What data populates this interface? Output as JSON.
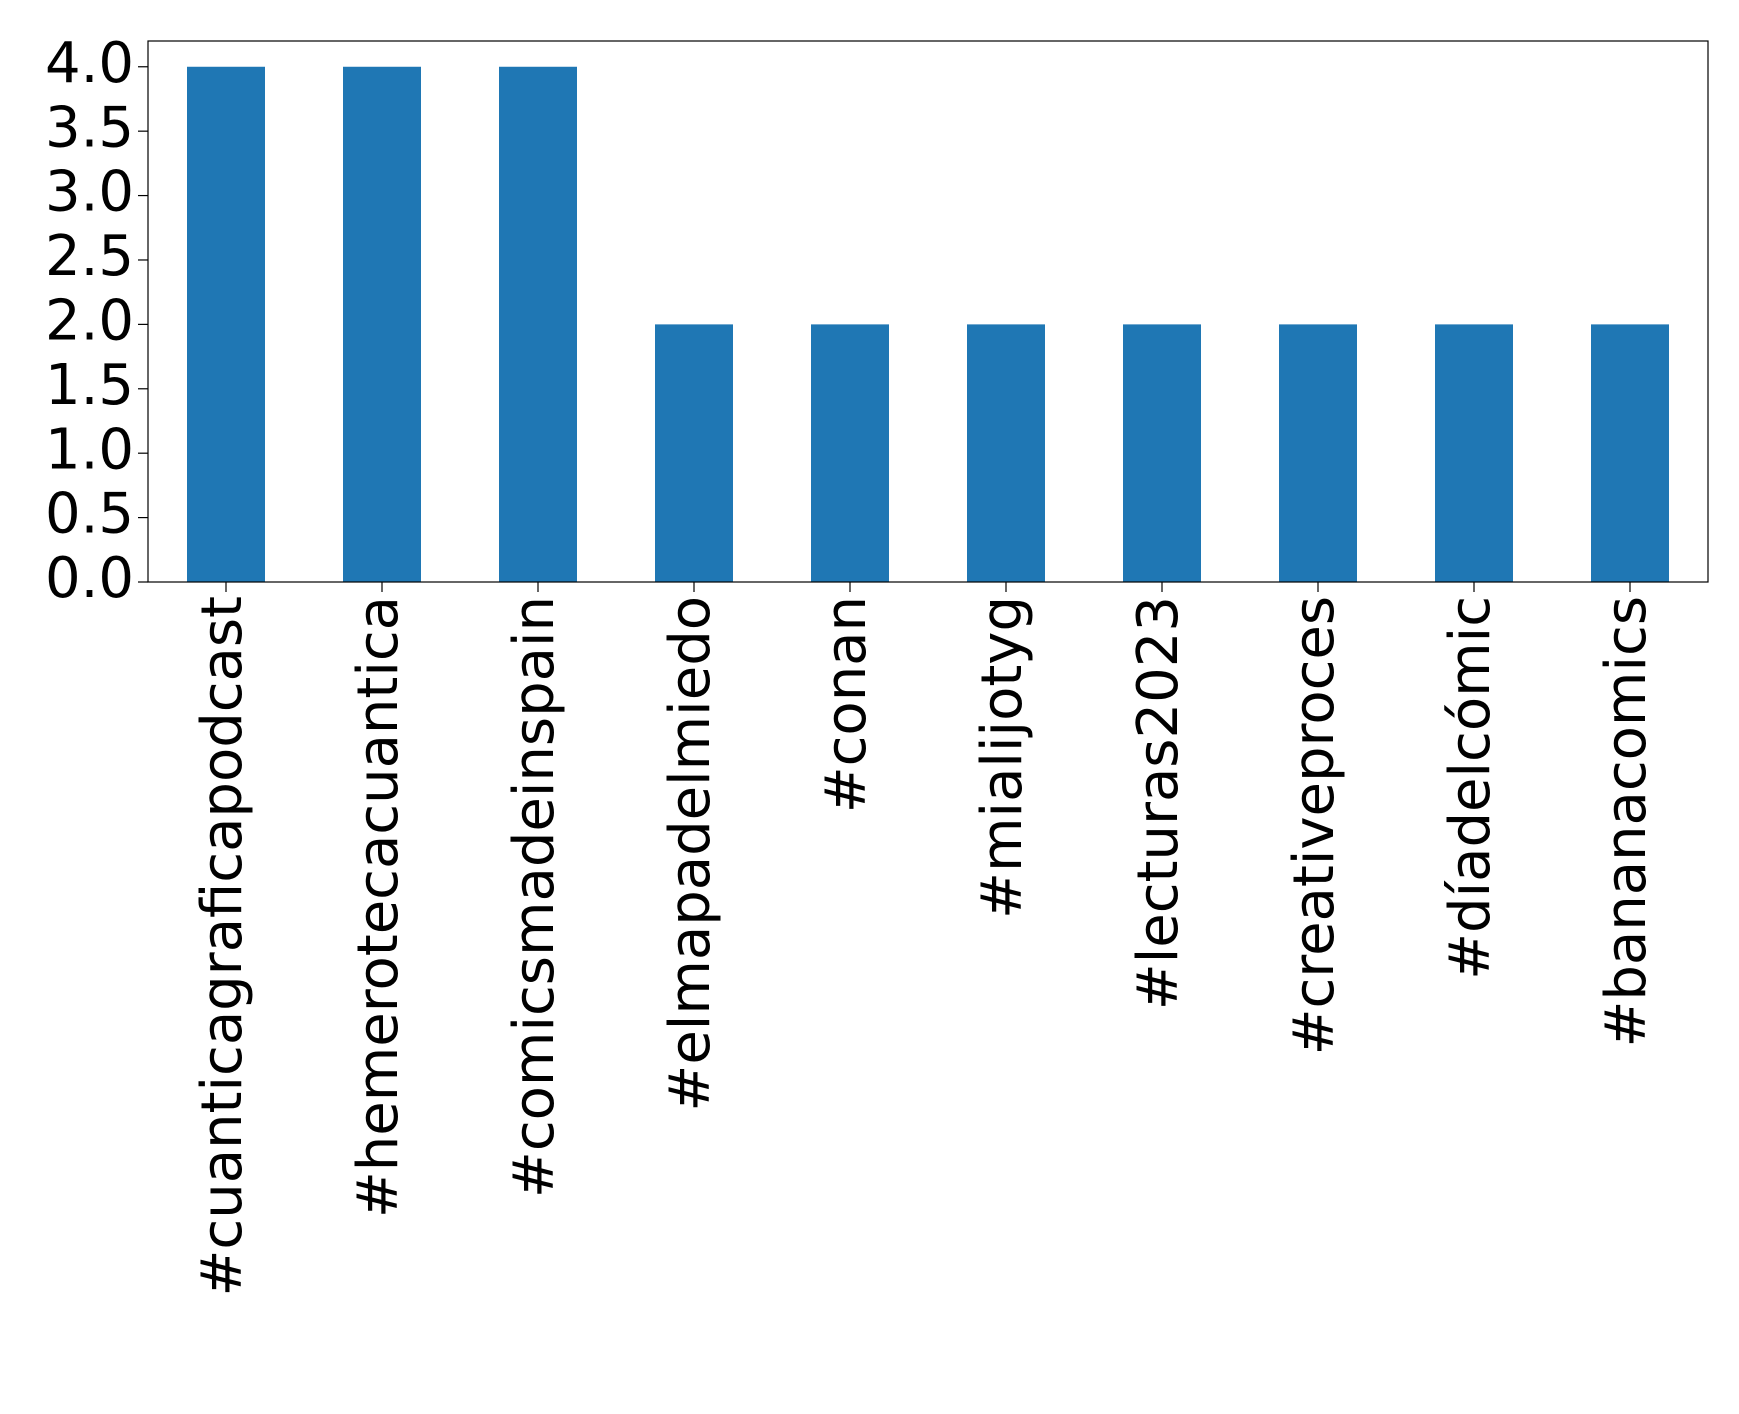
{
  "chart_data": {
    "type": "bar",
    "categories": [
      "#cuanticagraficapodcast",
      "#hemerotecacuantica",
      "#comicsmadeinspain",
      "#elmapadelmiedo",
      "#conan",
      "#mialijotyg",
      "#lecturas2023",
      "#creativeproces",
      "#díadelcómic",
      "#bananacomics"
    ],
    "values": [
      4,
      4,
      4,
      2,
      2,
      2,
      2,
      2,
      2,
      2
    ],
    "color": "#1f77b4",
    "ylim": [
      0,
      4.2
    ],
    "yticks": [
      {
        "value": 0,
        "label": "0.0"
      },
      {
        "value": 0.5,
        "label": "0.5"
      },
      {
        "value": 1,
        "label": "1.0"
      },
      {
        "value": 1.5,
        "label": "1.5"
      },
      {
        "value": 2,
        "label": "2.0"
      },
      {
        "value": 2.5,
        "label": "2.5"
      },
      {
        "value": 3,
        "label": "3.0"
      },
      {
        "value": 3.5,
        "label": "3.5"
      },
      {
        "value": 4,
        "label": "4.0"
      }
    ],
    "grid": false
  }
}
